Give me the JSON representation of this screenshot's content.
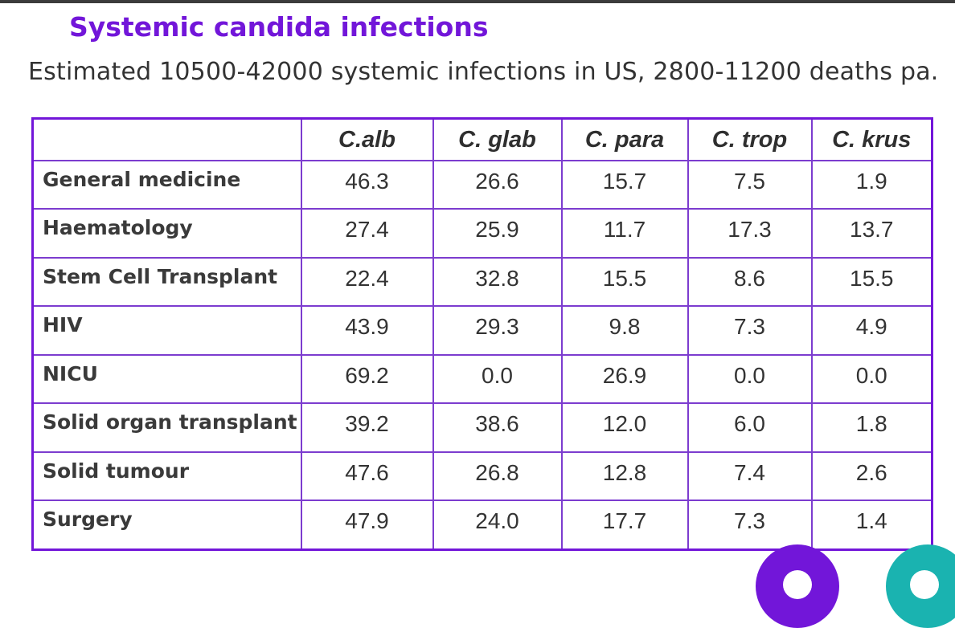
{
  "title": "Systemic candida infections",
  "subtitle": "Estimated 10500-42000 systemic infections in US, 2800-11200 deaths pa.",
  "table": {
    "columns": [
      "",
      "C.alb",
      "C. glab",
      "C. para",
      "C. trop",
      "C. krus"
    ],
    "rows": [
      {
        "label": "General medicine",
        "values": [
          "46.3",
          "26.6",
          "15.7",
          "7.5",
          "1.9"
        ]
      },
      {
        "label": "Haematology",
        "values": [
          "27.4",
          "25.9",
          "11.7",
          "17.3",
          "13.7"
        ]
      },
      {
        "label": "Stem Cell Transplant",
        "values": [
          "22.4",
          "32.8",
          "15.5",
          "8.6",
          "15.5"
        ]
      },
      {
        "label": "HIV",
        "values": [
          "43.9",
          "29.3",
          "9.8",
          "7.3",
          "4.9"
        ]
      },
      {
        "label": "NICU",
        "values": [
          "69.2",
          "0.0",
          "26.9",
          "0.0",
          "0.0"
        ]
      },
      {
        "label": "Solid organ transplant",
        "values": [
          "39.2",
          "38.6",
          "12.0",
          "6.0",
          "1.8"
        ]
      },
      {
        "label": "Solid tumour",
        "values": [
          "47.6",
          "26.8",
          "12.8",
          "7.4",
          "2.6"
        ]
      },
      {
        "label": "Surgery",
        "values": [
          "47.9",
          "24.0",
          "17.7",
          "7.3",
          "1.4"
        ]
      }
    ]
  },
  "colors": {
    "accent": "#7216d9",
    "teal": "#1ab3b0",
    "text": "#333333"
  }
}
